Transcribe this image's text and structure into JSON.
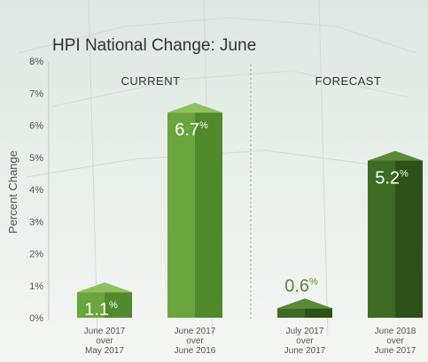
{
  "chart_data": {
    "type": "bar",
    "title": "HPI National Change: June",
    "ylabel": "Percent Change",
    "ylim": [
      0,
      8
    ],
    "yticks": [
      "0%",
      "1%",
      "2%",
      "3%",
      "4%",
      "5%",
      "6%",
      "7%",
      "8%"
    ],
    "sections": [
      {
        "label": "CURRENT",
        "bar_indices": [
          0,
          1
        ]
      },
      {
        "label": "FORECAST",
        "bar_indices": [
          2,
          3
        ]
      }
    ],
    "categories": [
      [
        "June 2017",
        "over",
        "May 2017"
      ],
      [
        "June 2017",
        "over",
        "June 2016"
      ],
      [
        "July 2017",
        "over",
        "June 2017"
      ],
      [
        "June 2018",
        "over",
        "June 2017"
      ]
    ],
    "values": [
      1.1,
      6.7,
      0.6,
      5.2
    ],
    "data_labels": [
      {
        "value": "1.1",
        "unit": "%"
      },
      {
        "value": "6.7",
        "unit": "%"
      },
      {
        "value": "0.6",
        "unit": "%"
      },
      {
        "value": "5.2",
        "unit": "%"
      }
    ],
    "grid": false,
    "colors": {
      "current_front": "#6aa53d",
      "current_side": "#508a2c",
      "current_top": "#8ec05e",
      "forecast_front": "#3f6a22",
      "forecast_side": "#2d5217",
      "forecast_top": "#5a8a37",
      "current_label": "#ffffff",
      "forecast_label": "#5a8a37",
      "text": "#333333",
      "tick": "#555555",
      "divider": "#aaaaaa"
    }
  }
}
